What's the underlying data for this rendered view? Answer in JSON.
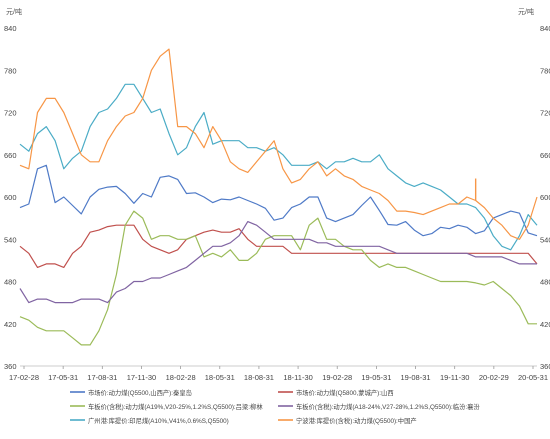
{
  "chart_data": {
    "type": "line",
    "unit_left": "元/吨",
    "unit_right": "元/吨",
    "ylim": [
      360,
      840
    ],
    "yticks": [
      360,
      420,
      480,
      540,
      600,
      660,
      720,
      780,
      840
    ],
    "x_labels": [
      "17-02-28",
      "17-05-31",
      "17-08-31",
      "17-11-30",
      "18-02-28",
      "18-05-31",
      "18-08-31",
      "18-11-30",
      "19-02-28",
      "19-05-31",
      "19-08-31",
      "19-11-30",
      "20-02-29",
      "20-05-31"
    ],
    "series": [
      {
        "name": "市场价:动力煤(Q5500,山西产):秦皇岛",
        "color": "#4f7ac7",
        "values": [
          585,
          590,
          640,
          645,
          592,
          600,
          588,
          576,
          600,
          611,
          614,
          615,
          605,
          591,
          605,
          600,
          628,
          630,
          625,
          605,
          606,
          600,
          592,
          597,
          596,
          600,
          595,
          590,
          584,
          567,
          570,
          585,
          590,
          600,
          600,
          570,
          565,
          570,
          575,
          588,
          600,
          581,
          561,
          560,
          565,
          553,
          545,
          548,
          557,
          555,
          560,
          557,
          548,
          552,
          570,
          575,
          580,
          577,
          549,
          545
        ]
      },
      {
        "name": "市场价:动力煤(Q5800,蒙城产):山西",
        "color": "#c0504d",
        "values": [
          530,
          520,
          500,
          505,
          505,
          500,
          520,
          530,
          550,
          553,
          558,
          560,
          560,
          560,
          540,
          530,
          525,
          520,
          525,
          540,
          545,
          550,
          553,
          550,
          550,
          555,
          540,
          530,
          530,
          530,
          530,
          520,
          520,
          520,
          520,
          520,
          520,
          520,
          520,
          520,
          520,
          520,
          520,
          520,
          520,
          520,
          520,
          520,
          520,
          520,
          520,
          520,
          520,
          520,
          520,
          520,
          520,
          520,
          520,
          505
        ]
      },
      {
        "name": "车板价(含税):动力煤(A19%,V20-25%,1.2%S,Q5500):吕梁:柳林",
        "color": "#9bbb59",
        "values": [
          430,
          425,
          415,
          410,
          410,
          410,
          400,
          390,
          390,
          410,
          440,
          490,
          560,
          580,
          570,
          540,
          545,
          545,
          540,
          540,
          545,
          515,
          520,
          515,
          525,
          510,
          510,
          520,
          540,
          545,
          545,
          545,
          525,
          560,
          570,
          540,
          540,
          530,
          525,
          525,
          510,
          500,
          505,
          500,
          500,
          495,
          490,
          485,
          480,
          480,
          480,
          480,
          478,
          475,
          480,
          470,
          460,
          445,
          420,
          420
        ]
      },
      {
        "name": "车板价(含税):动力煤(A18-24%,V27-28%,1.2%S,Q5500):临汾:襄汾",
        "color": "#8064a2",
        "values": [
          470,
          450,
          455,
          455,
          450,
          450,
          450,
          455,
          455,
          455,
          450,
          465,
          470,
          480,
          480,
          485,
          485,
          490,
          495,
          500,
          510,
          520,
          530,
          530,
          535,
          545,
          565,
          560,
          550,
          540,
          540,
          540,
          540,
          540,
          535,
          535,
          530,
          530,
          530,
          530,
          530,
          530,
          525,
          520,
          520,
          520,
          520,
          520,
          520,
          520,
          520,
          520,
          515,
          515,
          515,
          515,
          510,
          505,
          505,
          505
        ]
      },
      {
        "name": "广州港:库提价:印尼煤(A10%,V41%,0.6%S,Q5500)",
        "color": "#4bacc6",
        "values": [
          675,
          665,
          690,
          700,
          680,
          640,
          655,
          665,
          700,
          720,
          725,
          740,
          760,
          760,
          740,
          720,
          725,
          690,
          660,
          670,
          700,
          720,
          675,
          680,
          680,
          680,
          670,
          670,
          665,
          670,
          660,
          645,
          645,
          645,
          650,
          640,
          650,
          650,
          655,
          650,
          650,
          660,
          640,
          630,
          620,
          615,
          620,
          615,
          610,
          600,
          590,
          590,
          585,
          570,
          545,
          530,
          525,
          545,
          575,
          560
        ]
      },
      {
        "name": "宁波港:库提价(含税):动力煤(Q5500):中国产",
        "color": "#f79646",
        "values": [
          645,
          640,
          720,
          740,
          740,
          720,
          690,
          660,
          650,
          650,
          680,
          700,
          715,
          720,
          740,
          780,
          800,
          810,
          700,
          700,
          690,
          670,
          700,
          680,
          650,
          640,
          635,
          650,
          665,
          680,
          640,
          620,
          625,
          640,
          650,
          630,
          640,
          630,
          625,
          615,
          610,
          605,
          595,
          580,
          580,
          578,
          575,
          580,
          585,
          590,
          590,
          600,
          595,
          585,
          570,
          560,
          545,
          540,
          560,
          600
        ]
      }
    ],
    "annotation_x": 52
  }
}
